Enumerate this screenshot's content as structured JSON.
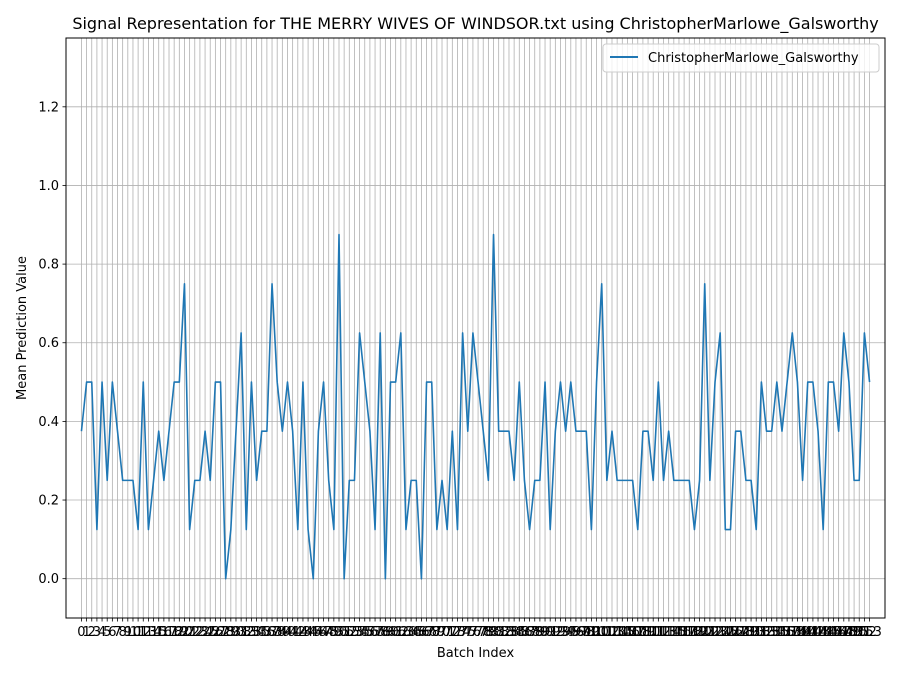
{
  "chart_data": {
    "type": "line",
    "title": "Signal Representation for THE MERRY WIVES OF WINDSOR.txt using ChristopherMarlowe_Galsworthy",
    "xlabel": "Batch Index",
    "ylabel": "Mean Prediction Value",
    "xlim": [
      -3,
      156
    ],
    "ylim": [
      -0.1,
      1.375
    ],
    "yticks": [
      0.0,
      0.2,
      0.4,
      0.6,
      0.8,
      1.0,
      1.2
    ],
    "xticks": "every integer 0-153",
    "grid": true,
    "legend_position": "top-right",
    "line_color": "#1f77b4",
    "series": [
      {
        "name": "ChristopherMarlowe_Galsworthy",
        "x": [
          0,
          1,
          2,
          3,
          4,
          5,
          6,
          7,
          8,
          9,
          10,
          11,
          12,
          13,
          14,
          15,
          16,
          17,
          18,
          19,
          20,
          21,
          22,
          23,
          24,
          25,
          26,
          27,
          28,
          29,
          30,
          31,
          32,
          33,
          34,
          35,
          36,
          37,
          38,
          39,
          40,
          41,
          42,
          43,
          44,
          45,
          46,
          47,
          48,
          49,
          50,
          51,
          52,
          53,
          54,
          55,
          56,
          57,
          58,
          59,
          60,
          61,
          62,
          63,
          64,
          65,
          66,
          67,
          68,
          69,
          70,
          71,
          72,
          73,
          74,
          75,
          76,
          77,
          78,
          79,
          80,
          81,
          82,
          83,
          84,
          85,
          86,
          87,
          88,
          89,
          90,
          91,
          92,
          93,
          94,
          95,
          96,
          97,
          98,
          99,
          100,
          101,
          102,
          103,
          104,
          105,
          106,
          107,
          108,
          109,
          110,
          111,
          112,
          113,
          114,
          115,
          116,
          117,
          118,
          119,
          120,
          121,
          122,
          123,
          124,
          125,
          126,
          127,
          128,
          129,
          130,
          131,
          132,
          133,
          134,
          135,
          136,
          137,
          138,
          139,
          140,
          141,
          142,
          143,
          144,
          145,
          146,
          147,
          148,
          149,
          150,
          151,
          152,
          153
        ],
        "values": [
          0.375,
          0.5,
          0.5,
          0.125,
          0.5,
          0.25,
          0.5,
          0.375,
          0.25,
          0.25,
          0.25,
          0.125,
          0.5,
          0.125,
          0.25,
          0.375,
          0.25,
          0.375,
          0.5,
          0.5,
          0.75,
          0.125,
          0.25,
          0.25,
          0.375,
          0.25,
          0.5,
          0.5,
          0.0,
          0.125,
          0.375,
          0.625,
          0.125,
          0.5,
          0.25,
          0.375,
          0.375,
          0.75,
          0.5,
          0.375,
          0.5,
          0.375,
          0.125,
          0.5,
          0.125,
          0.0,
          0.375,
          0.5,
          0.25,
          0.125,
          0.875,
          0.0,
          0.25,
          0.25,
          0.625,
          0.5,
          0.375,
          0.125,
          0.625,
          0.0,
          0.5,
          0.5,
          0.625,
          0.125,
          0.25,
          0.25,
          0.0,
          0.5,
          0.5,
          0.125,
          0.25,
          0.125,
          0.375,
          0.125,
          0.625,
          0.375,
          0.625,
          0.5,
          0.375,
          0.25,
          0.875,
          0.375,
          0.375,
          0.375,
          0.25,
          0.5,
          0.25,
          0.125,
          0.25,
          0.25,
          0.5,
          0.125,
          0.375,
          0.5,
          0.375,
          0.5,
          0.375,
          0.375,
          0.375,
          0.125,
          0.5,
          0.75,
          0.25,
          0.375,
          0.25,
          0.25,
          0.25,
          0.25,
          0.125,
          0.375,
          0.375,
          0.25,
          0.5,
          0.25,
          0.375,
          0.25,
          0.25,
          0.25,
          0.25,
          0.125,
          0.25,
          0.75,
          0.25,
          0.5,
          0.625,
          0.125,
          0.125,
          0.375,
          0.375,
          0.25,
          0.25,
          0.125,
          0.5,
          0.375,
          0.375,
          0.5,
          0.375,
          0.5,
          0.625,
          0.5,
          0.25,
          0.5,
          0.5,
          0.375,
          0.125,
          0.5,
          0.5,
          0.375,
          0.625,
          0.5,
          0.25,
          0.25,
          0.625,
          0.5
        ]
      }
    ]
  }
}
